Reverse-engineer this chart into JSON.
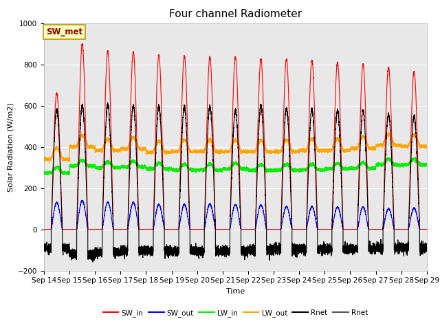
{
  "title": "Four channel Radiometer",
  "xlabel": "Time",
  "ylabel": "Solar Radiation (W/m2)",
  "ylim": [
    -200,
    1000
  ],
  "xlim": [
    0,
    15
  ],
  "x_tick_labels": [
    "Sep 14",
    "Sep 15",
    "Sep 16",
    "Sep 17",
    "Sep 18",
    "Sep 19",
    "Sep 20",
    "Sep 21",
    "Sep 22",
    "Sep 23",
    "Sep 24",
    "Sep 25",
    "Sep 26",
    "Sep 27",
    "Sep 28",
    "Sep 29"
  ],
  "annotation_text": "SW_met",
  "annotation_bg": "#ffffc0",
  "annotation_border": "#b8960c",
  "annotation_text_color": "#8b0000",
  "background_color": "#e8e8e8",
  "fig_bg": "#ffffff",
  "legend_entries": [
    {
      "label": "SW_in",
      "color": "#ff0000"
    },
    {
      "label": "SW_out",
      "color": "#0000ff"
    },
    {
      "label": "LW_in",
      "color": "#00ee00"
    },
    {
      "label": "LW_out",
      "color": "#ffa500"
    },
    {
      "label": "Rnet",
      "color": "#000000"
    },
    {
      "label": "Rnet",
      "color": "#555555"
    }
  ],
  "n_days": 15,
  "sw_in_peaks": [
    660,
    900,
    865,
    860,
    845,
    840,
    835,
    835,
    825,
    825,
    820,
    810,
    800,
    785,
    765
  ],
  "sw_out_peaks": [
    130,
    140,
    132,
    130,
    120,
    120,
    122,
    120,
    118,
    110,
    110,
    108,
    108,
    100,
    103
  ],
  "lw_in_base": [
    285,
    320,
    312,
    315,
    305,
    300,
    300,
    305,
    298,
    300,
    300,
    305,
    308,
    325,
    325
  ],
  "lw_out_base": [
    375,
    435,
    418,
    425,
    408,
    412,
    412,
    412,
    412,
    412,
    418,
    418,
    428,
    442,
    438
  ],
  "rnet_peaks": [
    580,
    600,
    605,
    600,
    598,
    595,
    595,
    575,
    598,
    588,
    583,
    578,
    578,
    558,
    548
  ],
  "rnet_night": [
    -90,
    -120,
    -110,
    -105,
    -105,
    -105,
    -105,
    -105,
    -100,
    -95,
    -95,
    -95,
    -95,
    -90,
    -90
  ]
}
